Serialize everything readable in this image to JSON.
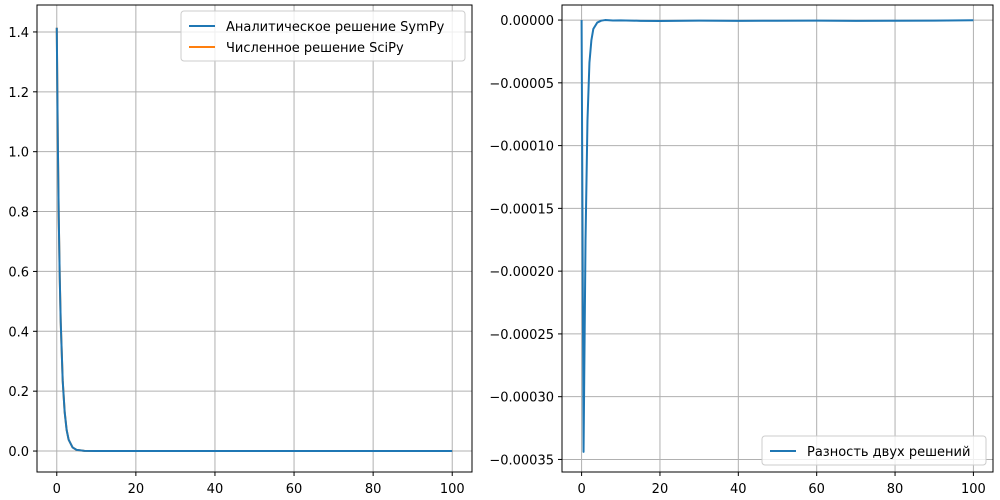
{
  "colors": {
    "sympy": "#1f77b4",
    "scipy": "#ff7f0e",
    "difference": "#1f77b4",
    "grid": "#b0b0b0",
    "axes": "#000000"
  },
  "chart_data": [
    {
      "type": "line",
      "title": "",
      "xlabel": "",
      "ylabel": "",
      "xlim": [
        -5,
        105
      ],
      "ylim": [
        -0.07,
        1.49
      ],
      "grid": true,
      "legend_position": "top-right",
      "xticks": [
        0,
        20,
        40,
        60,
        80,
        100
      ],
      "xtick_labels": [
        "0",
        "20",
        "40",
        "60",
        "80",
        "100"
      ],
      "yticks": [
        0.0,
        0.2,
        0.4,
        0.6,
        0.8,
        1.0,
        1.2,
        1.4
      ],
      "ytick_labels": [
        "0.0",
        "0.2",
        "0.4",
        "0.6",
        "0.8",
        "1.0",
        "1.2",
        "1.4"
      ],
      "series": [
        {
          "name": "Аналитическое решение SymPy",
          "color": "#1f77b4",
          "x": [
            0,
            0.25,
            0.5,
            0.75,
            1,
            1.5,
            2,
            2.5,
            3,
            4,
            5,
            7,
            10,
            20,
            40,
            60,
            80,
            100
          ],
          "y": [
            1.414,
            1.05,
            0.78,
            0.58,
            0.43,
            0.235,
            0.13,
            0.07,
            0.038,
            0.012,
            0.004,
            0.0005,
            0.0,
            0.0,
            0.0,
            0.0,
            0.0,
            0.0
          ]
        },
        {
          "name": "Численное решение SciPy",
          "color": "#ff7f0e",
          "x": [
            0,
            0.25,
            0.5,
            0.75,
            1,
            1.5,
            2,
            2.5,
            3,
            4,
            5,
            7,
            10,
            20,
            40,
            60,
            80,
            100
          ],
          "y": [
            1.414,
            1.05,
            0.78,
            0.58,
            0.43,
            0.235,
            0.13,
            0.07,
            0.038,
            0.012,
            0.004,
            0.0005,
            0.0,
            0.0,
            0.0,
            0.0,
            0.0,
            0.0
          ]
        }
      ]
    },
    {
      "type": "line",
      "title": "",
      "xlabel": "",
      "ylabel": "",
      "xlim": [
        -5,
        105
      ],
      "ylim": [
        -0.00036,
        1.2e-05
      ],
      "grid": true,
      "legend_position": "lower-right",
      "xticks": [
        0,
        20,
        40,
        60,
        80,
        100
      ],
      "xtick_labels": [
        "0",
        "20",
        "40",
        "60",
        "80",
        "100"
      ],
      "yticks": [
        0.0,
        -5e-05,
        -0.0001,
        -0.00015,
        -0.0002,
        -0.00025,
        -0.0003,
        -0.00035
      ],
      "ytick_labels": [
        "0.00000",
        "−0.00005",
        "−0.00010",
        "−0.00015",
        "−0.00020",
        "−0.00025",
        "−0.00030",
        "−0.00035"
      ],
      "series": [
        {
          "name": "Разность двух решений",
          "color": "#1f77b4",
          "x": [
            0,
            0.5,
            1,
            1.5,
            2,
            2.5,
            3,
            4,
            5,
            6,
            8,
            10,
            15,
            20,
            30,
            40,
            50,
            60,
            70,
            80,
            90,
            100
          ],
          "y": [
            0.0,
            -0.000344,
            -0.000176,
            -8e-05,
            -3.4e-05,
            -1.6e-05,
            -7e-06,
            -2e-06,
            -5e-07,
            0.0,
            -3e-07,
            -2e-07,
            -6e-07,
            -7e-07,
            -4e-07,
            -6e-07,
            -5e-07,
            -4e-07,
            -6e-07,
            -5e-07,
            -4e-07,
            -1e-07
          ]
        }
      ]
    }
  ]
}
